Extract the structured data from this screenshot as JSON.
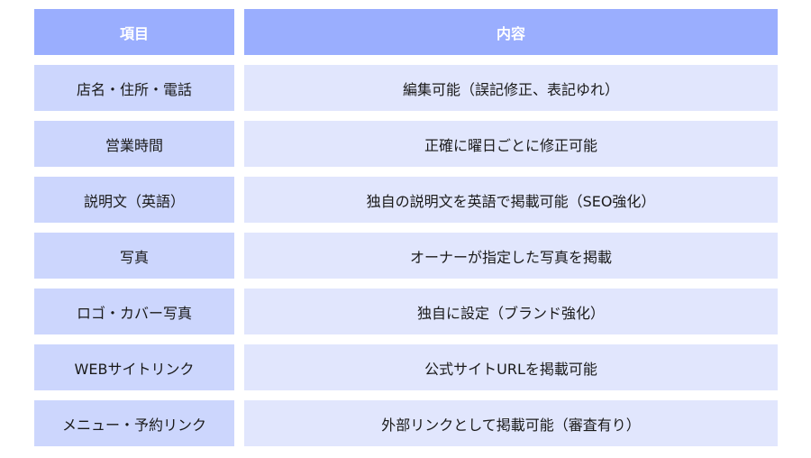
{
  "colors": {
    "header": "#9aaefe",
    "left_cell": "#ccd6fd",
    "right_cell": "#e1e6fd"
  },
  "table": {
    "headers": [
      "項目",
      "内容"
    ],
    "rows": [
      [
        "店名・住所・電話",
        "編集可能（誤記修正、表記ゆれ）"
      ],
      [
        "営業時間",
        "正確に曜日ごとに修正可能"
      ],
      [
        "説明文（英語）",
        "独自の説明文を英語で掲載可能（SEO強化）"
      ],
      [
        "写真",
        "オーナーが指定した写真を掲載"
      ],
      [
        "ロゴ・カバー写真",
        "独自に設定（ブランド強化）"
      ],
      [
        "WEBサイトリンク",
        "公式サイトURLを掲載可能"
      ],
      [
        "メニュー・予約リンク",
        "外部リンクとして掲載可能（審査有り）"
      ]
    ]
  }
}
